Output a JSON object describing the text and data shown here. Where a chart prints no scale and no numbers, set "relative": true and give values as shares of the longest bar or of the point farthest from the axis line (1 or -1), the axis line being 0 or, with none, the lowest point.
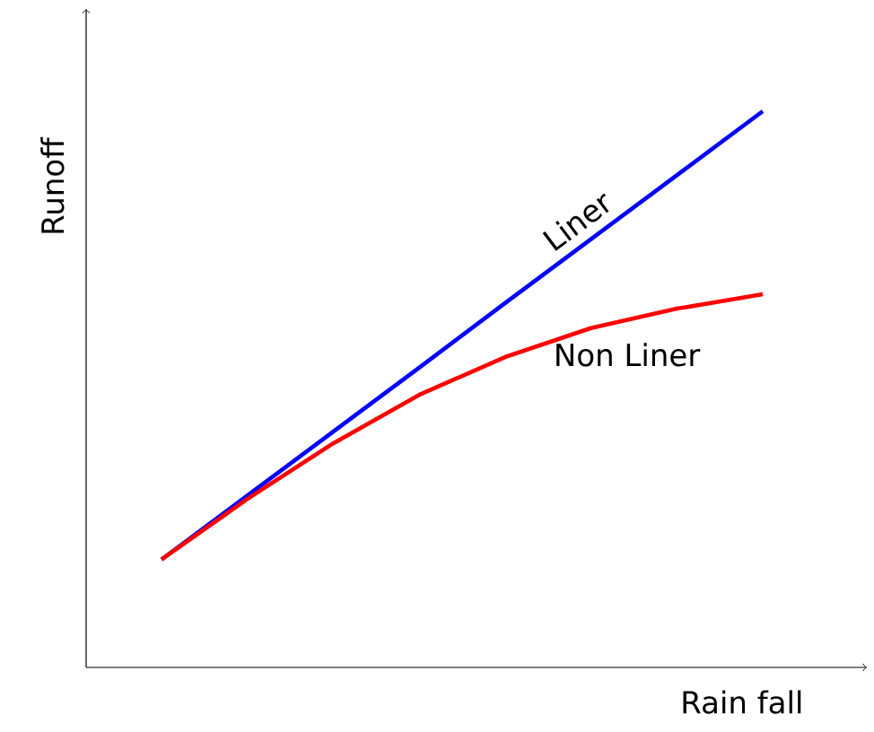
{
  "chart_data": {
    "type": "line",
    "relative": true,
    "xlabel": "Rain fall",
    "ylabel": "Runoff",
    "categories": [
      null,
      null,
      null,
      null,
      null,
      null,
      null,
      null
    ],
    "series": [
      {
        "name": "Liner",
        "color": "#0000ff",
        "values": [
          0.194,
          0.309,
          0.424,
          0.539,
          0.655,
          0.77,
          0.885,
          1
        ]
      },
      {
        "name": "Non Liner",
        "color": "#ff0000",
        "values": [
          0.194,
          0.303,
          0.403,
          0.49,
          0.558,
          0.61,
          0.645,
          0.671
        ]
      }
    ]
  }
}
